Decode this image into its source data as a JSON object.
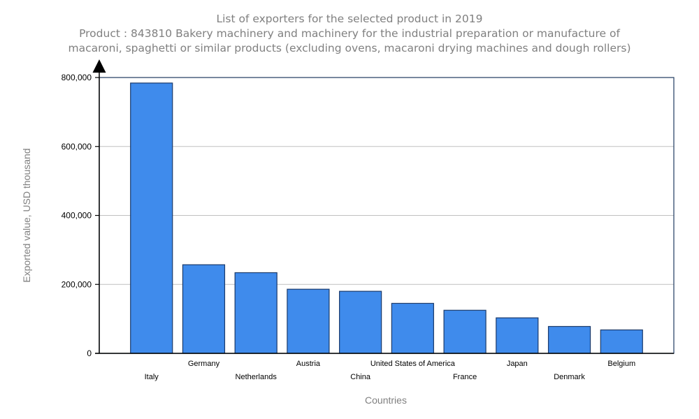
{
  "chart_data": {
    "type": "bar",
    "title": "List of exporters for the selected product in 2019",
    "subtitle_lines": [
      "Product : 843810 Bakery machinery and machinery for the industrial preparation or manufacture of",
      "macaroni, spaghetti or similar products (excluding ovens, macaroni drying machines and dough rollers)"
    ],
    "xlabel": "Countries",
    "ylabel": "Exported value, USD thousand",
    "categories": [
      "Italy",
      "Germany",
      "Netherlands",
      "Austria",
      "China",
      "United States of America",
      "France",
      "Japan",
      "Denmark",
      "Belgium"
    ],
    "values": [
      784000,
      257000,
      234000,
      186000,
      180000,
      145000,
      125000,
      103000,
      78000,
      68000
    ],
    "ylim": [
      0,
      800000
    ],
    "yticks": [
      0,
      200000,
      400000,
      600000,
      800000
    ],
    "ytick_labels": [
      "0",
      "200,000",
      "400,000",
      "600,000",
      "800,000"
    ],
    "grid": true,
    "legend": "none",
    "colors": {
      "bar_fill": "#3f8bec",
      "bar_stroke": "#1a3a6b",
      "frame": "#1f3a5f",
      "grid": "#c0c0c0",
      "axis": "#000000",
      "title": "#808080"
    }
  }
}
